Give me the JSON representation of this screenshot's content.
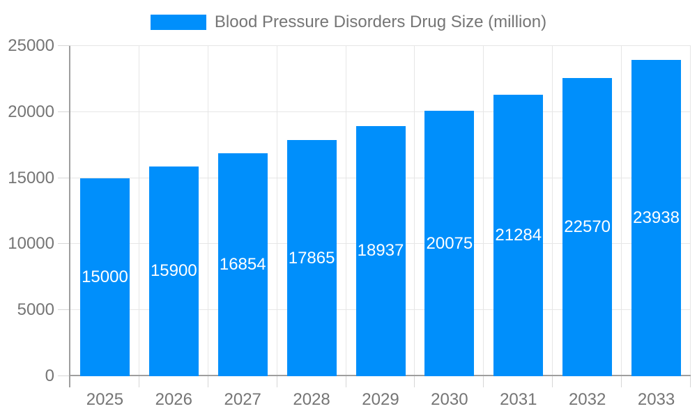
{
  "chart_data": {
    "type": "bar",
    "legend_label": "Blood Pressure Disorders Drug Size (million)",
    "categories": [
      "2025",
      "2026",
      "2027",
      "2028",
      "2029",
      "2030",
      "2031",
      "2032",
      "2033"
    ],
    "values": [
      15000,
      15900,
      16854,
      17865,
      18937,
      20075,
      21284,
      22570,
      23938
    ],
    "title": "",
    "xlabel": "",
    "ylabel": "",
    "ylim": [
      0,
      25000
    ],
    "yticks": [
      0,
      5000,
      10000,
      15000,
      20000,
      25000
    ],
    "legend_position": "top",
    "grid": true,
    "value_labels_inside_bars": true,
    "colors": {
      "bar": "#008FFB",
      "value_label": "#FFFFFF",
      "tick_text": "#757575",
      "legend_text": "#757575",
      "grid_line": "#E6E6E6",
      "axis_line": "#9E9E9E",
      "tick_mark": "#D6D6D6",
      "background": "#FFFFFF"
    }
  }
}
